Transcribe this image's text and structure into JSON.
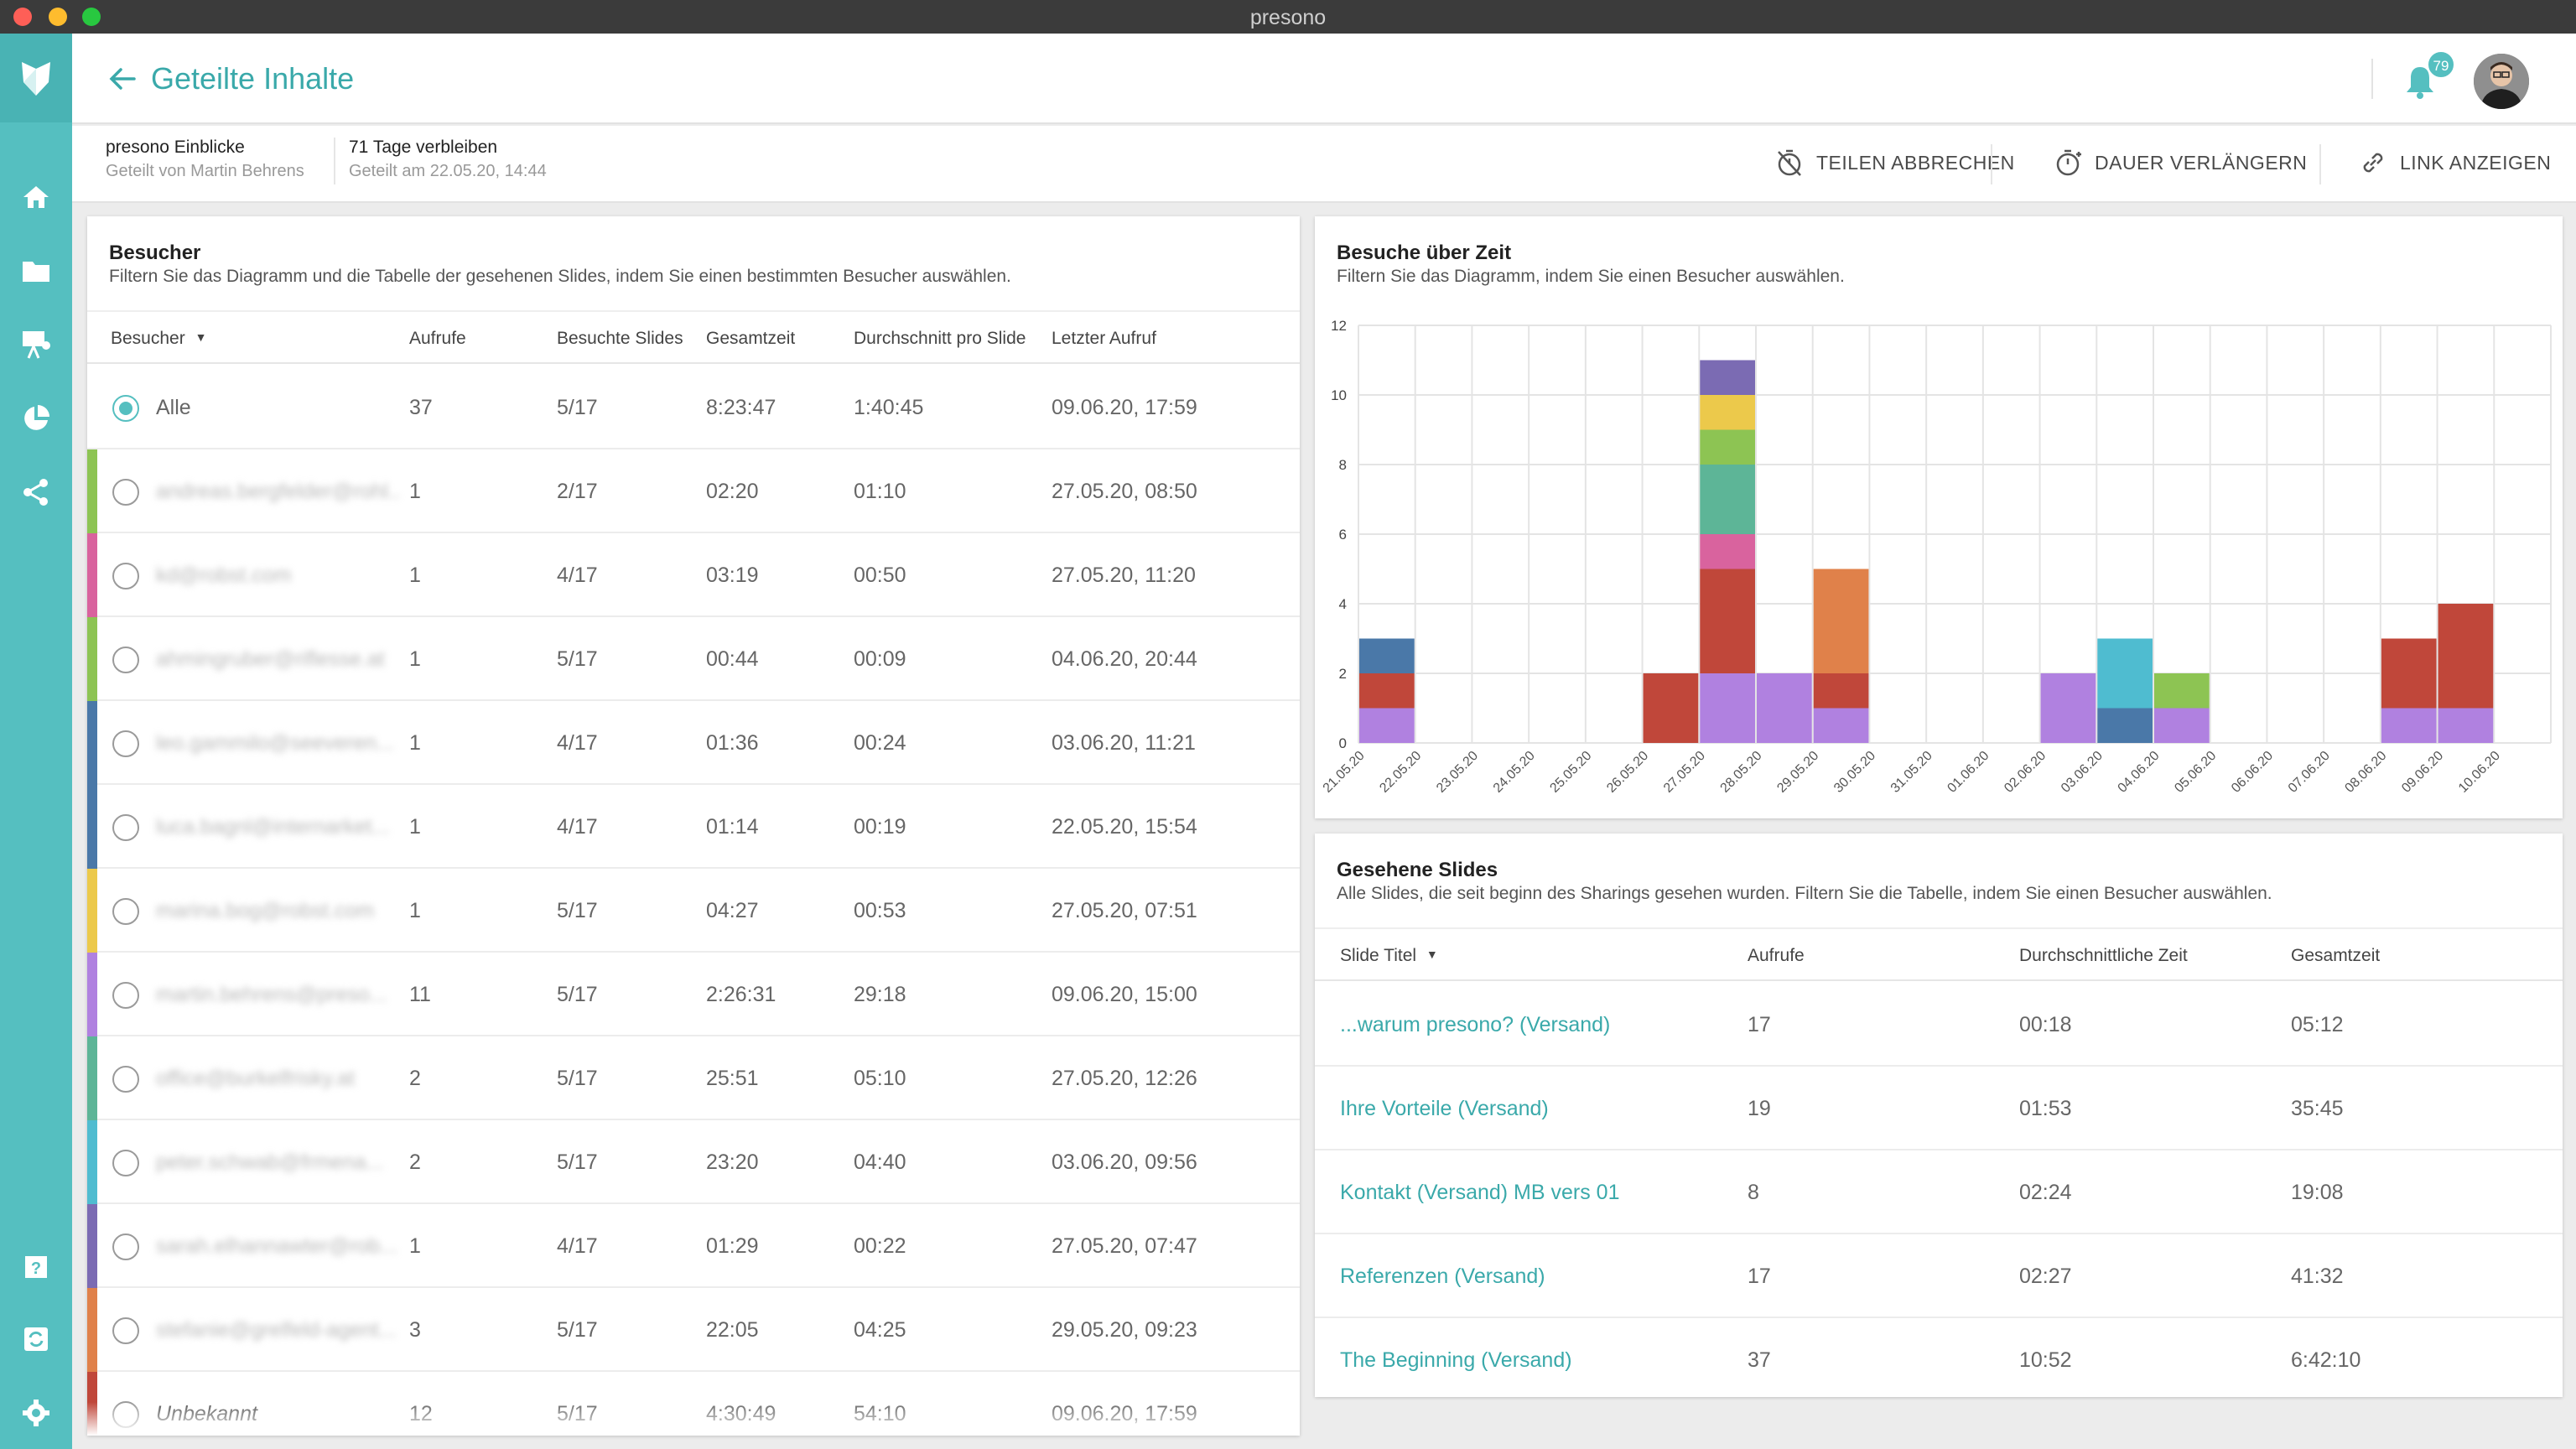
{
  "window": {
    "title": "presono"
  },
  "colors": {
    "accent": "#55bfc0",
    "accent_dark": "#3aa9aa"
  },
  "rail": {
    "icons": [
      "presono-logo-icon",
      "home-icon",
      "folder-icon",
      "presentation-icon",
      "pie-chart-icon",
      "share-icon",
      "help-icon",
      "sync-icon",
      "settings-icon"
    ]
  },
  "header": {
    "title": "Geteilte Inhalte",
    "notification_count": "79"
  },
  "share_info": {
    "name": "presono Einblicke",
    "shared_by": "Geteilt von Martin Behrens",
    "remaining": "71 Tage verbleiben",
    "shared_on": "Geteilt am 22.05.20, 14:44"
  },
  "actions": {
    "cancel": "TEILEN ABBRECHEN",
    "extend": "DAUER VERLÄNGERN",
    "link": "LINK ANZEIGEN"
  },
  "visitors": {
    "title": "Besucher",
    "subtitle": "Filtern Sie das Diagramm und die Tabelle der gesehenen Slides, indem Sie einen bestimmten Besucher auswählen.",
    "columns": [
      "Besucher",
      "Aufrufe",
      "Besuchte Slides",
      "Gesamtzeit",
      "Durchschnitt pro Slide",
      "Letzter Aufruf"
    ],
    "rows": [
      {
        "name": "Alle",
        "views": "37",
        "slides": "5/17",
        "total": "8:23:47",
        "avg": "1:40:45",
        "last": "09.06.20, 17:59",
        "color": "",
        "selected": true,
        "style": "plain"
      },
      {
        "name": "andreas.bergfelder@rohl...",
        "views": "1",
        "slides": "2/17",
        "total": "02:20",
        "avg": "01:10",
        "last": "27.05.20, 08:50",
        "color": "#8dc453",
        "selected": false,
        "style": "blur"
      },
      {
        "name": "kd@robst.com",
        "views": "1",
        "slides": "4/17",
        "total": "03:19",
        "avg": "00:50",
        "last": "27.05.20, 11:20",
        "color": "#d9639e",
        "selected": false,
        "style": "blur"
      },
      {
        "name": "ahmingruber@riflesse.at",
        "views": "1",
        "slides": "5/17",
        "total": "00:44",
        "avg": "00:09",
        "last": "04.06.20, 20:44",
        "color": "#8dc453",
        "selected": false,
        "style": "blur"
      },
      {
        "name": "leo.gammilo@seeveren...",
        "views": "1",
        "slides": "4/17",
        "total": "01:36",
        "avg": "00:24",
        "last": "03.06.20, 11:21",
        "color": "#4a78a8",
        "selected": false,
        "style": "blur"
      },
      {
        "name": "luca.bagnl@internarket...",
        "views": "1",
        "slides": "4/17",
        "total": "01:14",
        "avg": "00:19",
        "last": "22.05.20, 15:54",
        "color": "#4a78a8",
        "selected": false,
        "style": "blur"
      },
      {
        "name": "marina.bog@robst.com",
        "views": "1",
        "slides": "5/17",
        "total": "04:27",
        "avg": "00:53",
        "last": "27.05.20, 07:51",
        "color": "#ecc94b",
        "selected": false,
        "style": "blur"
      },
      {
        "name": "martin.behrens@preso...",
        "views": "11",
        "slides": "5/17",
        "total": "2:26:31",
        "avg": "29:18",
        "last": "09.06.20, 15:00",
        "color": "#b081e0",
        "selected": false,
        "style": "blur"
      },
      {
        "name": "office@burkelfrisky.at",
        "views": "2",
        "slides": "5/17",
        "total": "25:51",
        "avg": "05:10",
        "last": "27.05.20, 12:26",
        "color": "#5db597",
        "selected": false,
        "style": "blur"
      },
      {
        "name": "peter.schwab@frmena...",
        "views": "2",
        "slides": "5/17",
        "total": "23:20",
        "avg": "04:40",
        "last": "03.06.20, 09:56",
        "color": "#4fbcd0",
        "selected": false,
        "style": "blur"
      },
      {
        "name": "sarah.elhannawter@rob...",
        "views": "1",
        "slides": "4/17",
        "total": "01:29",
        "avg": "00:22",
        "last": "27.05.20, 07:47",
        "color": "#7b6bb3",
        "selected": false,
        "style": "blur"
      },
      {
        "name": "stefanie@grelfeld-agent...",
        "views": "3",
        "slides": "5/17",
        "total": "22:05",
        "avg": "04:25",
        "last": "29.05.20, 09:23",
        "color": "#e0814a",
        "selected": false,
        "style": "blur"
      },
      {
        "name": "Unbekannt",
        "views": "12",
        "slides": "5/17",
        "total": "4:30:49",
        "avg": "54:10",
        "last": "09.06.20, 17:59",
        "color": "#c0473a",
        "selected": false,
        "style": "italic"
      }
    ]
  },
  "visits_chart": {
    "title": "Besuche über Zeit",
    "subtitle": "Filtern Sie das Diagramm, indem Sie einen Besucher auswählen."
  },
  "chart_data": {
    "type": "bar",
    "stacked": true,
    "title": "Besuche über Zeit",
    "xlabel": "",
    "ylabel": "",
    "ylim": [
      0,
      12
    ],
    "yticks": [
      0,
      2,
      4,
      6,
      8,
      10,
      12
    ],
    "grid": true,
    "categories": [
      "21.05.20",
      "22.05.20",
      "23.05.20",
      "24.05.20",
      "25.05.20",
      "26.05.20",
      "27.05.20",
      "28.05.20",
      "29.05.20",
      "30.05.20",
      "31.05.20",
      "01.06.20",
      "02.06.20",
      "03.06.20",
      "04.06.20",
      "05.06.20",
      "06.06.20",
      "07.06.20",
      "08.06.20",
      "09.06.20",
      "10.06.20"
    ],
    "series": [
      {
        "color": "#b081e0",
        "values": [
          1,
          0,
          0,
          0,
          0,
          0,
          2,
          2,
          1,
          0,
          0,
          0,
          2,
          0,
          1,
          0,
          0,
          0,
          1,
          1,
          0
        ]
      },
      {
        "color": "#c0473a",
        "values": [
          1,
          0,
          0,
          0,
          0,
          2,
          3,
          0,
          1,
          0,
          0,
          0,
          0,
          0,
          0,
          0,
          0,
          0,
          2,
          3,
          0
        ]
      },
      {
        "color": "#4a78a8",
        "values": [
          1,
          0,
          0,
          0,
          0,
          0,
          0,
          0,
          0,
          0,
          0,
          0,
          0,
          1,
          0,
          0,
          0,
          0,
          0,
          0,
          0
        ]
      },
      {
        "color": "#d9639e",
        "values": [
          0,
          0,
          0,
          0,
          0,
          0,
          1,
          0,
          0,
          0,
          0,
          0,
          0,
          0,
          0,
          0,
          0,
          0,
          0,
          0,
          0
        ]
      },
      {
        "color": "#5db597",
        "values": [
          0,
          0,
          0,
          0,
          0,
          0,
          2,
          0,
          0,
          0,
          0,
          0,
          0,
          0,
          0,
          0,
          0,
          0,
          0,
          0,
          0
        ]
      },
      {
        "color": "#8dc453",
        "values": [
          0,
          0,
          0,
          0,
          0,
          0,
          1,
          0,
          0,
          0,
          0,
          0,
          0,
          0,
          1,
          0,
          0,
          0,
          0,
          0,
          0
        ]
      },
      {
        "color": "#ecc94b",
        "values": [
          0,
          0,
          0,
          0,
          0,
          0,
          1,
          0,
          0,
          0,
          0,
          0,
          0,
          0,
          0,
          0,
          0,
          0,
          0,
          0,
          0
        ]
      },
      {
        "color": "#7b6bb3",
        "values": [
          0,
          0,
          0,
          0,
          0,
          0,
          1,
          0,
          0,
          0,
          0,
          0,
          0,
          0,
          0,
          0,
          0,
          0,
          0,
          0,
          0
        ]
      },
      {
        "color": "#e0814a",
        "values": [
          0,
          0,
          0,
          0,
          0,
          0,
          0,
          0,
          3,
          0,
          0,
          0,
          0,
          0,
          0,
          0,
          0,
          0,
          0,
          0,
          0
        ]
      },
      {
        "color": "#4fbcd0",
        "values": [
          0,
          0,
          0,
          0,
          0,
          0,
          0,
          0,
          0,
          0,
          0,
          0,
          0,
          2,
          0,
          0,
          0,
          0,
          0,
          0,
          0
        ]
      }
    ]
  },
  "slides": {
    "title": "Gesehene Slides",
    "subtitle": "Alle Slides, die seit beginn des Sharings gesehen wurden. Filtern Sie die Tabelle, indem Sie einen Besucher auswählen.",
    "columns": [
      "Slide Titel",
      "Aufrufe",
      "Durchschnittliche Zeit",
      "Gesamtzeit"
    ],
    "rows": [
      {
        "title": "...warum presono? (Versand)",
        "views": "17",
        "avg": "00:18",
        "total": "05:12"
      },
      {
        "title": "Ihre Vorteile (Versand)",
        "views": "19",
        "avg": "01:53",
        "total": "35:45"
      },
      {
        "title": "Kontakt (Versand) MB vers 01",
        "views": "8",
        "avg": "02:24",
        "total": "19:08"
      },
      {
        "title": "Referenzen (Versand)",
        "views": "17",
        "avg": "02:27",
        "total": "41:32"
      },
      {
        "title": "The Beginning (Versand)",
        "views": "37",
        "avg": "10:52",
        "total": "6:42:10"
      }
    ]
  }
}
